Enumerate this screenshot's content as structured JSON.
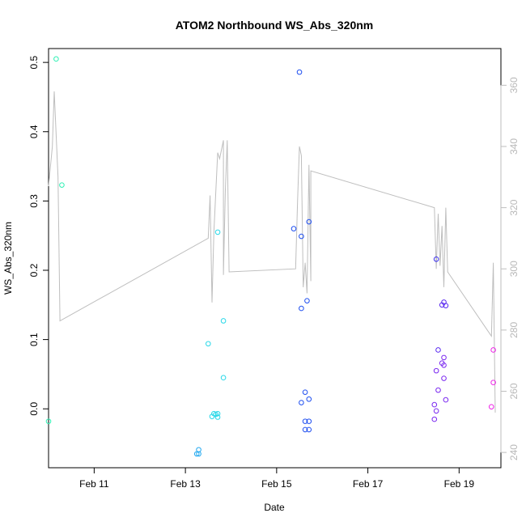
{
  "chart_data": {
    "type": "scatter",
    "title": "ATOM2 Northbound WS_Abs_320nm",
    "xlabel": "Date",
    "ylabel": "WS_Abs_320nm",
    "x_range_days": [
      "Feb 10 00:00",
      "Feb 19 22:00"
    ],
    "ylim": [
      -0.085,
      0.52
    ],
    "y2lim": [
      235,
      372
    ],
    "x_ticks": [
      {
        "value": "Feb 11",
        "label": "Feb 11"
      },
      {
        "value": "Feb 13",
        "label": "Feb 13"
      },
      {
        "value": "Feb 15",
        "label": "Feb 15"
      },
      {
        "value": "Feb 17",
        "label": "Feb 17"
      },
      {
        "value": "Feb 19",
        "label": "Feb 19"
      }
    ],
    "y_ticks": [
      "0.0",
      "0.1",
      "0.2",
      "0.3",
      "0.4",
      "0.5"
    ],
    "y_tick_values": [
      0.0,
      0.1,
      0.2,
      0.3,
      0.4,
      0.5
    ],
    "y2_ticks": [
      "240",
      "260",
      "280",
      "300",
      "320",
      "340",
      "360"
    ],
    "y2_tick_values": [
      240,
      260,
      280,
      300,
      320,
      340,
      360
    ],
    "grid": false,
    "legend": "none",
    "colors": {
      "track_line": "#bebebe",
      "right_axis": "#bebebe",
      "frame": "#000000",
      "points_gradient": [
        "#2ef0b4",
        "#29d8e8",
        "#21a8f0",
        "#1f4ff0",
        "#3a2ef0",
        "#7a28f0",
        "#c228e8",
        "#ee22e8"
      ]
    },
    "points": [
      {
        "x": "Feb 10 04:00",
        "y": 0.505,
        "color": "#2ef0b4"
      },
      {
        "x": "Feb 10 07:00",
        "y": 0.323,
        "color": "#2ef0b4"
      },
      {
        "x": "Feb 10 00:00",
        "y": -0.018,
        "color": "#2ef0b4"
      },
      {
        "x": "Feb 13 12:00",
        "y": 0.094,
        "color": "#29d8e8"
      },
      {
        "x": "Feb 13 17:00",
        "y": 0.255,
        "color": "#29d8e8"
      },
      {
        "x": "Feb 13 20:00",
        "y": 0.127,
        "color": "#29d8e8"
      },
      {
        "x": "Feb 13 20:00",
        "y": 0.045,
        "color": "#29d8e8"
      },
      {
        "x": "Feb 13 15:00",
        "y": -0.007,
        "color": "#29d8e8"
      },
      {
        "x": "Feb 13 17:00",
        "y": -0.007,
        "color": "#29d8e8"
      },
      {
        "x": "Feb 13 14:00",
        "y": -0.011,
        "color": "#29d8e8"
      },
      {
        "x": "Feb 13 17:00",
        "y": -0.012,
        "color": "#29d8e8"
      },
      {
        "x": "Feb 13 16:00",
        "y": -0.008,
        "color": "#29d8e8"
      },
      {
        "x": "Feb 13 07:00",
        "y": -0.059,
        "color": "#21a8f0"
      },
      {
        "x": "Feb 13 07:00",
        "y": -0.065,
        "color": "#21a8f0"
      },
      {
        "x": "Feb 13 06:00",
        "y": -0.065,
        "color": "#21a8f0"
      },
      {
        "x": "Feb 15 12:00",
        "y": 0.486,
        "color": "#1f4ff0"
      },
      {
        "x": "Feb 15 09:00",
        "y": 0.26,
        "color": "#1f4ff0"
      },
      {
        "x": "Feb 15 17:00",
        "y": 0.27,
        "color": "#1f4ff0"
      },
      {
        "x": "Feb 15 13:00",
        "y": 0.249,
        "color": "#1f4ff0"
      },
      {
        "x": "Feb 15 16:00",
        "y": 0.156,
        "color": "#1f4ff0"
      },
      {
        "x": "Feb 15 13:00",
        "y": 0.145,
        "color": "#1f4ff0"
      },
      {
        "x": "Feb 15 15:00",
        "y": 0.024,
        "color": "#1f4ff0"
      },
      {
        "x": "Feb 15 17:00",
        "y": 0.014,
        "color": "#1f4ff0"
      },
      {
        "x": "Feb 15 13:00",
        "y": 0.009,
        "color": "#1f4ff0"
      },
      {
        "x": "Feb 15 15:00",
        "y": -0.018,
        "color": "#1f4ff0"
      },
      {
        "x": "Feb 15 17:00",
        "y": -0.018,
        "color": "#1f4ff0"
      },
      {
        "x": "Feb 15 15:00",
        "y": -0.03,
        "color": "#1f4ff0"
      },
      {
        "x": "Feb 15 17:00",
        "y": -0.03,
        "color": "#1f4ff0"
      },
      {
        "x": "Feb 18 12:00",
        "y": 0.216,
        "color": "#3a2ef0"
      },
      {
        "x": "Feb 18 15:00",
        "y": 0.15,
        "color": "#5a2af0"
      },
      {
        "x": "Feb 18 16:00",
        "y": 0.154,
        "color": "#5a2af0"
      },
      {
        "x": "Feb 18 17:00",
        "y": 0.149,
        "color": "#5a2af0"
      },
      {
        "x": "Feb 18 13:00",
        "y": 0.085,
        "color": "#5a2af0"
      },
      {
        "x": "Feb 18 16:00",
        "y": 0.074,
        "color": "#7a28f0"
      },
      {
        "x": "Feb 18 15:00",
        "y": 0.066,
        "color": "#7a28f0"
      },
      {
        "x": "Feb 18 16:00",
        "y": 0.063,
        "color": "#7a28f0"
      },
      {
        "x": "Feb 18 12:00",
        "y": 0.055,
        "color": "#7a28f0"
      },
      {
        "x": "Feb 18 16:00",
        "y": 0.044,
        "color": "#7a28f0"
      },
      {
        "x": "Feb 18 13:00",
        "y": 0.027,
        "color": "#7a28f0"
      },
      {
        "x": "Feb 18 17:00",
        "y": 0.013,
        "color": "#7a28f0"
      },
      {
        "x": "Feb 18 11:00",
        "y": 0.006,
        "color": "#7a28f0"
      },
      {
        "x": "Feb 18 12:00",
        "y": -0.003,
        "color": "#7a28f0"
      },
      {
        "x": "Feb 18 11:00",
        "y": -0.015,
        "color": "#7a28f0"
      },
      {
        "x": "Feb 19 18:00",
        "y": 0.085,
        "color": "#ee22e8"
      },
      {
        "x": "Feb 19 18:00",
        "y": 0.038,
        "color": "#ee22e8"
      },
      {
        "x": "Feb 19 17:00",
        "y": 0.003,
        "color": "#ee22e8"
      }
    ],
    "secondary_series_y2": [
      [
        "Feb 10 00:00",
        327
      ],
      [
        "Feb 10 02:00",
        340
      ],
      [
        "Feb 10 03:00",
        358
      ],
      [
        "Feb 10 05:00",
        330
      ],
      [
        "Feb 10 06:00",
        283
      ],
      [
        "Feb 13 12:00",
        310
      ],
      [
        "Feb 13 13:00",
        324
      ],
      [
        "Feb 13 14:00",
        289
      ],
      [
        "Feb 13 15:00",
        312
      ],
      [
        "Feb 13 17:00",
        338
      ],
      [
        "Feb 13 18:00",
        336
      ],
      [
        "Feb 13 20:00",
        342
      ],
      [
        "Feb 13 20:00",
        298
      ],
      [
        "Feb 13 21:00",
        325
      ],
      [
        "Feb 13 22:00",
        342
      ],
      [
        "Feb 13 23:00",
        299
      ],
      [
        "Feb 15 10:00",
        300
      ],
      [
        "Feb 15 11:00",
        322
      ],
      [
        "Feb 15 12:00",
        340
      ],
      [
        "Feb 15 13:00",
        337
      ],
      [
        "Feb 15 14:00",
        294
      ],
      [
        "Feb 15 15:00",
        302
      ],
      [
        "Feb 15 16:00",
        292
      ],
      [
        "Feb 15 17:00",
        334
      ],
      [
        "Feb 15 18:00",
        296
      ],
      [
        "Feb 15 18:00",
        332
      ],
      [
        "Feb 18 11:00",
        320
      ],
      [
        "Feb 18 12:00",
        300
      ],
      [
        "Feb 18 13:00",
        318
      ],
      [
        "Feb 18 14:00",
        301
      ],
      [
        "Feb 18 15:00",
        314
      ],
      [
        "Feb 18 16:00",
        294
      ],
      [
        "Feb 18 17:00",
        320
      ],
      [
        "Feb 18 18:00",
        299
      ],
      [
        "Feb 19 17:00",
        278
      ],
      [
        "Feb 19 18:00",
        302
      ],
      [
        "Feb 19 19:00",
        253
      ]
    ]
  }
}
